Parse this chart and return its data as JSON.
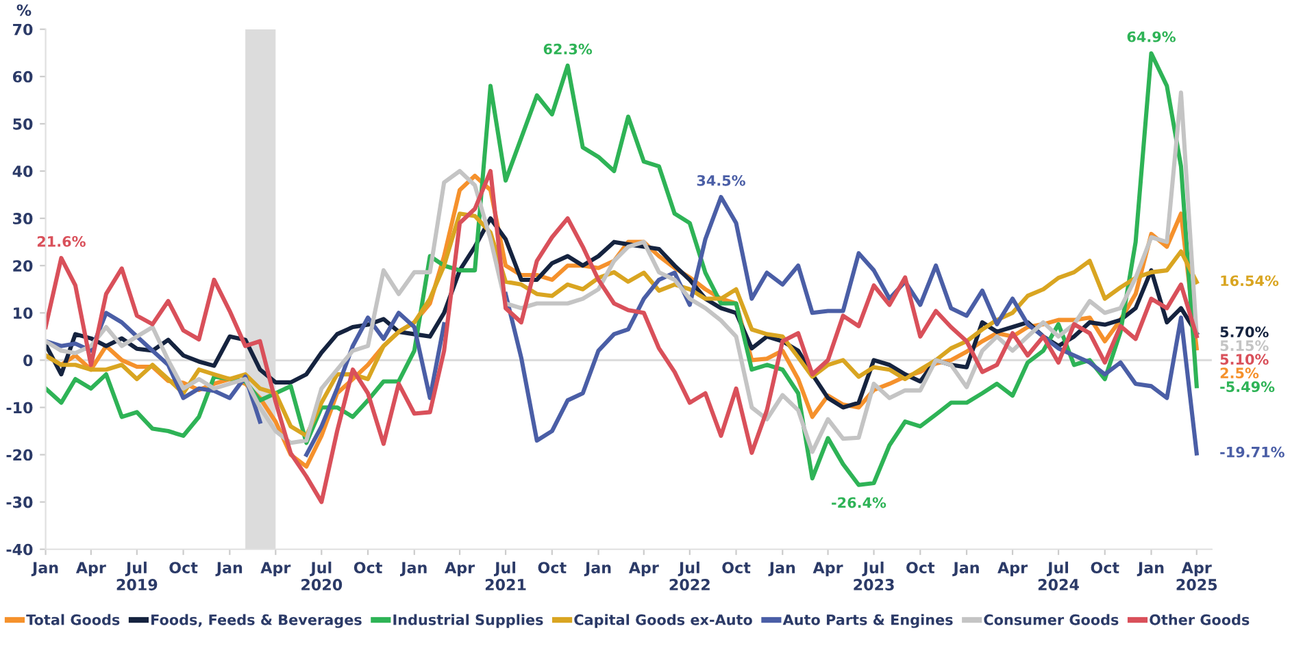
{
  "chart_data": {
    "type": "line",
    "ylabel": "%",
    "x": [
      "2019-01",
      "2019-02",
      "2019-03",
      "2019-04",
      "2019-05",
      "2019-06",
      "2019-07",
      "2019-08",
      "2019-09",
      "2019-10",
      "2019-11",
      "2019-12",
      "2020-01",
      "2020-02",
      "2020-03",
      "2020-04",
      "2020-05",
      "2020-06",
      "2020-07",
      "2020-08",
      "2020-09",
      "2020-10",
      "2020-11",
      "2020-12",
      "2021-01",
      "2021-02",
      "2021-03",
      "2021-04",
      "2021-05",
      "2021-06",
      "2021-07",
      "2021-08",
      "2021-09",
      "2021-10",
      "2021-11",
      "2021-12",
      "2022-01",
      "2022-02",
      "2022-03",
      "2022-04",
      "2022-05",
      "2022-06",
      "2022-07",
      "2022-08",
      "2022-09",
      "2022-10",
      "2022-11",
      "2022-12",
      "2023-01",
      "2023-02",
      "2023-03",
      "2023-04",
      "2023-05",
      "2023-06",
      "2023-07",
      "2023-08",
      "2023-09",
      "2023-10",
      "2023-11",
      "2023-12",
      "2024-01",
      "2024-02",
      "2024-03",
      "2024-04",
      "2024-05",
      "2024-06",
      "2024-07",
      "2024-08",
      "2024-09",
      "2024-10",
      "2024-11",
      "2024-12",
      "2025-01",
      "2025-02",
      "2025-03",
      "2025-04"
    ],
    "series": [
      {
        "name": "Total Goods",
        "color": "#f5912c",
        "values": [
          1,
          -1,
          1,
          -2,
          3,
          0,
          -1.4,
          -1.4,
          -4.4,
          -4.8,
          -6.3,
          -5,
          -4,
          -5,
          -8,
          -13,
          -20,
          -22.5,
          -16,
          -7,
          -4,
          -1,
          3,
          6,
          8,
          12,
          22,
          36,
          39,
          36,
          20,
          18,
          18,
          17,
          20,
          20,
          19.5,
          21,
          25,
          25,
          22,
          19.5,
          17.5,
          15,
          13,
          12,
          0,
          0.3,
          2,
          -4,
          -12,
          -7.5,
          -9.4,
          -10,
          -6.3,
          -5,
          -3.5,
          -2.5,
          -0.7,
          0,
          1.8,
          4,
          5.7,
          5,
          7,
          7.6,
          8.5,
          8.5,
          9,
          4,
          8.5,
          14,
          26.7,
          24,
          31,
          2.5
        ]
      },
      {
        "name": "Foods, Feeds & Beverages",
        "color": "#15233f",
        "values": [
          3.3,
          -3,
          5.5,
          4.6,
          3,
          4.6,
          2.4,
          2,
          4.3,
          1,
          -0.3,
          -1.2,
          5,
          4.3,
          -2,
          -4.7,
          -4.7,
          -3,
          1.6,
          5.5,
          7,
          7.5,
          8.7,
          6,
          5.5,
          5,
          10,
          19,
          24,
          30,
          25.6,
          17,
          17,
          20.5,
          22,
          20,
          22,
          25,
          24.5,
          24,
          23.5,
          20,
          17,
          13,
          11,
          10,
          2.5,
          5,
          4,
          2,
          -3,
          -8,
          -10,
          -9,
          0,
          -1,
          -3,
          -4.5,
          0,
          -1,
          -1.5,
          8,
          6,
          7,
          8,
          5,
          3,
          5,
          8,
          7.5,
          8.5,
          11,
          19,
          8,
          11,
          5.7
        ]
      },
      {
        "name": "Industrial Supplies",
        "color": "#2eb356",
        "values": [
          -6,
          -9,
          -4,
          -6,
          -3,
          -12,
          -11,
          -14.5,
          -15,
          -16,
          -12,
          -3.5,
          -4,
          -4.5,
          -8.5,
          -7,
          -5.5,
          -17.5,
          -10,
          -10,
          -12,
          -8.5,
          -4.5,
          -4.5,
          2,
          22,
          20,
          19,
          19,
          58,
          38,
          47,
          56,
          52,
          62.3,
          45,
          43,
          40,
          51.5,
          42,
          41,
          31,
          29,
          18.5,
          12,
          12,
          -2,
          -1,
          -2,
          -7,
          -25,
          -16.5,
          -22,
          -26.4,
          -26,
          -18,
          -13,
          -14,
          -11.5,
          -9,
          -9,
          -7,
          -5,
          -7.5,
          -0.5,
          2,
          7.6,
          -1,
          0,
          -4,
          6,
          25,
          64.9,
          58,
          41,
          -5.49
        ]
      },
      {
        "name": "Capital Goods ex-Auto",
        "color": "#d9a521",
        "values": [
          1,
          -1,
          -1,
          -2,
          -2,
          -1,
          -4,
          -1,
          -4,
          -7,
          -2,
          -3,
          -4,
          -3,
          -6,
          -7,
          -14,
          -16,
          -9,
          -3,
          -3,
          -4,
          3,
          6,
          8,
          13,
          20,
          31,
          30.5,
          27,
          16.6,
          16,
          14,
          13.6,
          16,
          15,
          17.4,
          18.6,
          16.6,
          18.5,
          14.7,
          16,
          15,
          13,
          13,
          15,
          6.5,
          5.5,
          5,
          0.6,
          -3.5,
          -1,
          0,
          -3.5,
          -1.5,
          -2,
          -4,
          -2,
          0,
          2.5,
          4,
          6.5,
          8.5,
          10,
          13.6,
          15,
          17.4,
          18.6,
          21,
          13,
          15.4,
          17.4,
          18.6,
          19,
          23,
          16.54
        ]
      },
      {
        "name": "Auto Parts & Engines",
        "color": "#4a5ea6",
        "values": [
          4,
          3,
          3.5,
          2,
          10,
          8,
          5,
          2,
          -1,
          -8,
          -6,
          -6.5,
          -8,
          -3.5,
          -13,
          null,
          null,
          -20,
          -14,
          -6,
          3,
          9,
          4.5,
          10,
          7,
          -8,
          7.6,
          null,
          null,
          null,
          14,
          0.5,
          -17,
          -15,
          -8.5,
          -7,
          2,
          5.5,
          6.5,
          13,
          17,
          18.5,
          11.7,
          25.6,
          34.5,
          29,
          13,
          18.5,
          16,
          20,
          10,
          10.4,
          10.4,
          22.6,
          19,
          13,
          16.6,
          11.7,
          20,
          11,
          9.4,
          14.7,
          7.6,
          13,
          7.6,
          5,
          2.5,
          1,
          -0.5,
          -3,
          -0.5,
          -5,
          -5.5,
          -8,
          9,
          -19.71
        ]
      },
      {
        "name": "Consumer Goods",
        "color": "#c4c4c4",
        "values": [
          4,
          2,
          1.5,
          3,
          7,
          3,
          5,
          7,
          0,
          -6,
          -4,
          -6,
          -5,
          -4,
          -10,
          -15,
          -17.5,
          -17,
          -6,
          -2,
          2,
          3,
          19,
          14,
          18.6,
          18.6,
          37.6,
          40,
          37,
          25.6,
          12,
          11,
          12,
          12,
          12,
          13,
          15,
          21,
          24,
          25,
          18.6,
          17,
          13,
          11,
          8.4,
          5,
          -10,
          -12.5,
          -7.4,
          -10.6,
          -19.4,
          -12.5,
          -16.6,
          -16.4,
          -5,
          -8,
          -6.4,
          -6.4,
          0,
          -1,
          -5.7,
          2,
          5,
          2,
          5,
          8,
          5,
          7.6,
          12.5,
          10,
          11,
          17.4,
          26,
          25,
          56.6,
          5.15
        ]
      },
      {
        "name": "Other Goods",
        "color": "#d9505a",
        "values": [
          7,
          21.6,
          15.8,
          -1,
          14,
          19.4,
          9.4,
          7.6,
          12.5,
          6.3,
          4.4,
          17,
          10.4,
          3,
          4,
          -8.8,
          -19.7,
          -24.6,
          -30,
          -15,
          -2,
          -7,
          -17.7,
          -5,
          -11.3,
          -11,
          2,
          29,
          32,
          40,
          11,
          8,
          21,
          26,
          30,
          24,
          17,
          12,
          10.6,
          10,
          2.5,
          -2.5,
          -9,
          -7,
          -16,
          -6,
          -19.6,
          -10.6,
          4,
          5.7,
          -3,
          0,
          9.4,
          7.2,
          15.8,
          11.7,
          17.5,
          5,
          10.4,
          7,
          4,
          -2.5,
          -1,
          5.7,
          1,
          5,
          -0.5,
          7.6,
          5.7,
          -0.5,
          7.2,
          4.5,
          13,
          11,
          16,
          5.1
        ]
      }
    ],
    "ylim": [
      -40,
      70
    ],
    "yticks": [
      -40,
      -30,
      -20,
      -10,
      0,
      10,
      20,
      30,
      40,
      50,
      60,
      70
    ],
    "xlim": [
      "2019-01",
      "2025-05"
    ],
    "xticks": [
      {
        "value": "2019-01",
        "label": "Jan"
      },
      {
        "value": "2019-04",
        "label": "Apr"
      },
      {
        "value": "2019-07",
        "label": "Jul\n2019"
      },
      {
        "value": "2019-10",
        "label": "Oct"
      },
      {
        "value": "2020-01",
        "label": "Jan"
      },
      {
        "value": "2020-04",
        "label": "Apr"
      },
      {
        "value": "2020-07",
        "label": "Jul\n2020"
      },
      {
        "value": "2020-10",
        "label": "Oct"
      },
      {
        "value": "2021-01",
        "label": "Jan"
      },
      {
        "value": "2021-04",
        "label": "Apr"
      },
      {
        "value": "2021-07",
        "label": "Jul\n2021"
      },
      {
        "value": "2021-10",
        "label": "Oct"
      },
      {
        "value": "2022-01",
        "label": "Jan"
      },
      {
        "value": "2022-04",
        "label": "Apr"
      },
      {
        "value": "2022-07",
        "label": "Jul\n2022"
      },
      {
        "value": "2022-10",
        "label": "Oct"
      },
      {
        "value": "2023-01",
        "label": "Jan"
      },
      {
        "value": "2023-04",
        "label": "Apr"
      },
      {
        "value": "2023-07",
        "label": "Jul\n2023"
      },
      {
        "value": "2023-10",
        "label": "Oct"
      },
      {
        "value": "2024-01",
        "label": "Jan"
      },
      {
        "value": "2024-04",
        "label": "Apr"
      },
      {
        "value": "2024-07",
        "label": "Jul\n2024"
      },
      {
        "value": "2024-10",
        "label": "Oct"
      },
      {
        "value": "2025-01",
        "label": "Jan"
      },
      {
        "value": "2025-04",
        "label": "Apr\n2025"
      }
    ],
    "ref_lines": [
      {
        "axis": "y",
        "value": 0,
        "color": "#dddddd"
      }
    ],
    "bands": [
      {
        "axis": "x",
        "from": "2020-02",
        "to": "2020-04",
        "color": "#dcdcdc"
      }
    ],
    "annotations": [
      {
        "text": "21.6%",
        "x": "2019-02",
        "y": 21.6
      },
      {
        "text": "62.3%",
        "x": "2021-11",
        "y": 62.3
      },
      {
        "text": "34.5%",
        "x": "2022-09",
        "y": 34.5
      },
      {
        "text": "-26.4%",
        "x": "2023-06",
        "y": -26.4
      },
      {
        "text": "64.9%",
        "x": "2025-01",
        "y": 64.9
      },
      {
        "text": "16.54%",
        "x": "2025-04",
        "y": 16.54
      },
      {
        "text": "5.70%",
        "x": "2025-04",
        "y": 5.7
      },
      {
        "text": "5.15%",
        "x": "2025-04",
        "y": 5.15
      },
      {
        "text": "5.10%",
        "x": "2025-04",
        "y": 5.1
      },
      {
        "text": "2.5%",
        "x": "2025-04",
        "y": 2.5
      },
      {
        "text": "-5.49%",
        "x": "2025-04",
        "y": -5.49
      },
      {
        "text": "-19.71%",
        "x": "2025-04",
        "y": -19.71
      }
    ],
    "legend": "bottom",
    "grid": false,
    "marker": "none",
    "line_style": "solid"
  }
}
